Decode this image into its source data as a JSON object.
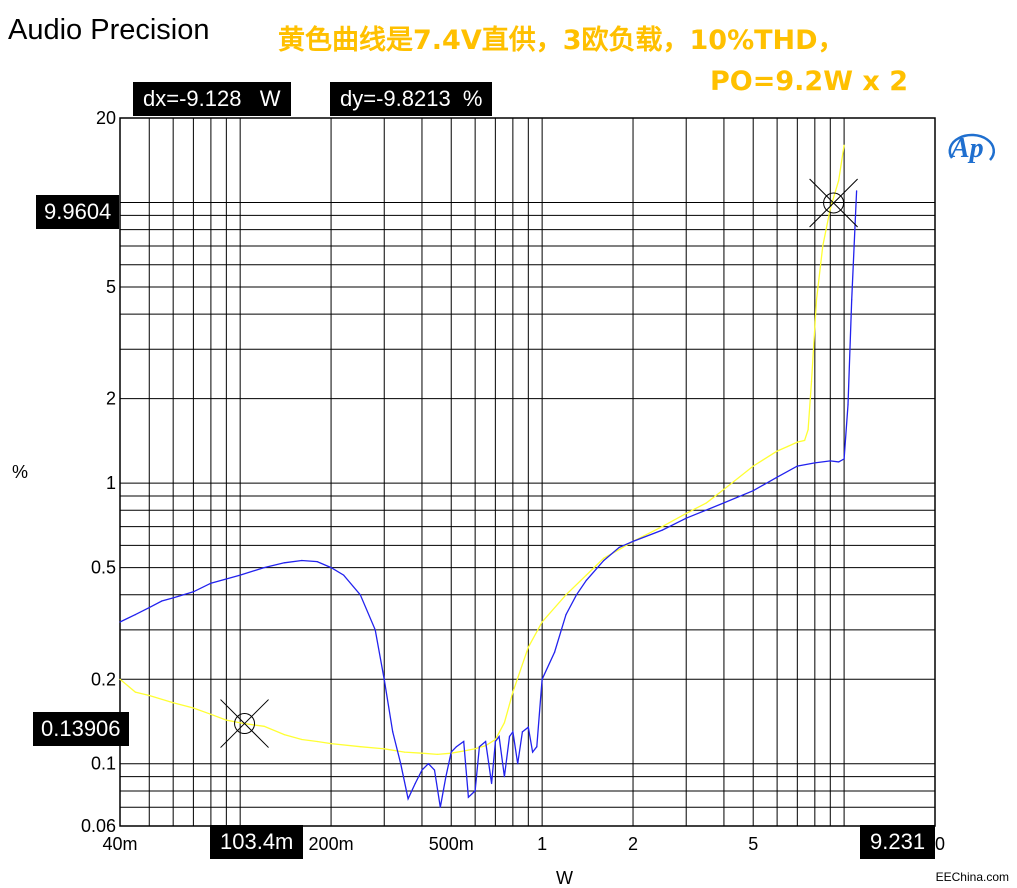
{
  "header": {
    "brand": "Audio Precision",
    "note_line1": "黄色曲线是7.4V直供，3欧负载，10%THD，",
    "note_line2": "PO=9.2W x 2"
  },
  "cursor_readout": {
    "dx": "dx=-9.128   W",
    "dy": "dy=-9.8213  %"
  },
  "markers": {
    "y_upper": "9.9604",
    "y_lower": "0.13906",
    "x_left": "103.4m",
    "x_right": "9.231"
  },
  "footer": {
    "watermark": "EEChina.com"
  },
  "logo": {
    "text": "Ap",
    "color": "#1f6fcf"
  },
  "chart_data": {
    "type": "line",
    "x_scale": "log",
    "y_scale": "log",
    "xlim": [
      0.04,
      20
    ],
    "ylim": [
      0.06,
      20
    ],
    "xlabel": "W",
    "ylabel": "%",
    "grid": true,
    "x_ticks": [
      {
        "v": 0.04,
        "label": "40m"
      },
      {
        "v": 0.2,
        "label": "200m"
      },
      {
        "v": 0.5,
        "label": "500m"
      },
      {
        "v": 1,
        "label": "1"
      },
      {
        "v": 2,
        "label": "2"
      },
      {
        "v": 5,
        "label": "5"
      },
      {
        "v": 20,
        "label": "20"
      }
    ],
    "y_ticks": [
      {
        "v": 20,
        "label": "20"
      },
      {
        "v": 5,
        "label": "5"
      },
      {
        "v": 2,
        "label": "2"
      },
      {
        "v": 1,
        "label": "1"
      },
      {
        "v": 0.5,
        "label": "0.5"
      },
      {
        "v": 0.2,
        "label": "0.2"
      },
      {
        "v": 0.1,
        "label": "0.1"
      },
      {
        "v": 0.06,
        "label": "0.06"
      }
    ],
    "cursors": [
      {
        "x": 0.1034,
        "y": 0.13906
      },
      {
        "x": 9.231,
        "y": 9.9604
      }
    ],
    "series": [
      {
        "color": "#ffff33",
        "points": [
          [
            0.04,
            0.2
          ],
          [
            0.045,
            0.18
          ],
          [
            0.05,
            0.175
          ],
          [
            0.06,
            0.165
          ],
          [
            0.07,
            0.158
          ],
          [
            0.08,
            0.15
          ],
          [
            0.09,
            0.143
          ],
          [
            0.1034,
            0.139
          ],
          [
            0.12,
            0.136
          ],
          [
            0.14,
            0.127
          ],
          [
            0.16,
            0.122
          ],
          [
            0.18,
            0.12
          ],
          [
            0.2,
            0.118
          ],
          [
            0.25,
            0.115
          ],
          [
            0.3,
            0.113
          ],
          [
            0.35,
            0.11
          ],
          [
            0.4,
            0.109
          ],
          [
            0.45,
            0.108
          ],
          [
            0.5,
            0.109
          ],
          [
            0.55,
            0.111
          ],
          [
            0.6,
            0.113
          ],
          [
            0.65,
            0.116
          ],
          [
            0.7,
            0.122
          ],
          [
            0.75,
            0.14
          ],
          [
            0.8,
            0.18
          ],
          [
            0.9,
            0.26
          ],
          [
            1.0,
            0.32
          ],
          [
            1.2,
            0.4
          ],
          [
            1.4,
            0.47
          ],
          [
            1.6,
            0.54
          ],
          [
            1.8,
            0.58
          ],
          [
            2.0,
            0.62
          ],
          [
            2.5,
            0.7
          ],
          [
            3.0,
            0.78
          ],
          [
            3.5,
            0.85
          ],
          [
            4.0,
            0.95
          ],
          [
            5.0,
            1.15
          ],
          [
            6.0,
            1.3
          ],
          [
            6.5,
            1.35
          ],
          [
            7.0,
            1.4
          ],
          [
            7.4,
            1.42
          ],
          [
            7.6,
            1.55
          ],
          [
            7.8,
            2.3
          ],
          [
            8.1,
            4.5
          ],
          [
            8.5,
            7.0
          ],
          [
            9.0,
            9.5
          ],
          [
            9.6,
            12.0
          ],
          [
            10.0,
            16.0
          ]
        ]
      },
      {
        "color": "#2222ee",
        "points": [
          [
            0.04,
            0.32
          ],
          [
            0.045,
            0.34
          ],
          [
            0.05,
            0.36
          ],
          [
            0.055,
            0.38
          ],
          [
            0.06,
            0.39
          ],
          [
            0.07,
            0.41
          ],
          [
            0.08,
            0.44
          ],
          [
            0.1,
            0.47
          ],
          [
            0.12,
            0.5
          ],
          [
            0.14,
            0.52
          ],
          [
            0.16,
            0.53
          ],
          [
            0.18,
            0.525
          ],
          [
            0.2,
            0.5
          ],
          [
            0.22,
            0.47
          ],
          [
            0.25,
            0.4
          ],
          [
            0.28,
            0.3
          ],
          [
            0.3,
            0.2
          ],
          [
            0.32,
            0.13
          ],
          [
            0.34,
            0.1
          ],
          [
            0.36,
            0.075
          ],
          [
            0.38,
            0.085
          ],
          [
            0.4,
            0.095
          ],
          [
            0.42,
            0.1
          ],
          [
            0.44,
            0.095
          ],
          [
            0.46,
            0.07
          ],
          [
            0.48,
            0.09
          ],
          [
            0.5,
            0.11
          ],
          [
            0.52,
            0.115
          ],
          [
            0.55,
            0.12
          ],
          [
            0.57,
            0.076
          ],
          [
            0.6,
            0.08
          ],
          [
            0.62,
            0.115
          ],
          [
            0.65,
            0.12
          ],
          [
            0.68,
            0.085
          ],
          [
            0.7,
            0.12
          ],
          [
            0.72,
            0.125
          ],
          [
            0.75,
            0.09
          ],
          [
            0.78,
            0.125
          ],
          [
            0.8,
            0.13
          ],
          [
            0.83,
            0.1
          ],
          [
            0.86,
            0.13
          ],
          [
            0.9,
            0.135
          ],
          [
            0.93,
            0.11
          ],
          [
            0.96,
            0.115
          ],
          [
            1.0,
            0.2
          ],
          [
            1.1,
            0.25
          ],
          [
            1.2,
            0.34
          ],
          [
            1.3,
            0.4
          ],
          [
            1.4,
            0.45
          ],
          [
            1.6,
            0.53
          ],
          [
            1.8,
            0.59
          ],
          [
            2.0,
            0.62
          ],
          [
            2.5,
            0.68
          ],
          [
            3.0,
            0.75
          ],
          [
            4.0,
            0.85
          ],
          [
            5.0,
            0.94
          ],
          [
            6.0,
            1.05
          ],
          [
            7.0,
            1.15
          ],
          [
            8.0,
            1.18
          ],
          [
            9.0,
            1.2
          ],
          [
            9.6,
            1.19
          ],
          [
            10.0,
            1.22
          ],
          [
            10.3,
            1.9
          ],
          [
            10.6,
            4.5
          ],
          [
            11.0,
            11.0
          ]
        ]
      }
    ]
  }
}
